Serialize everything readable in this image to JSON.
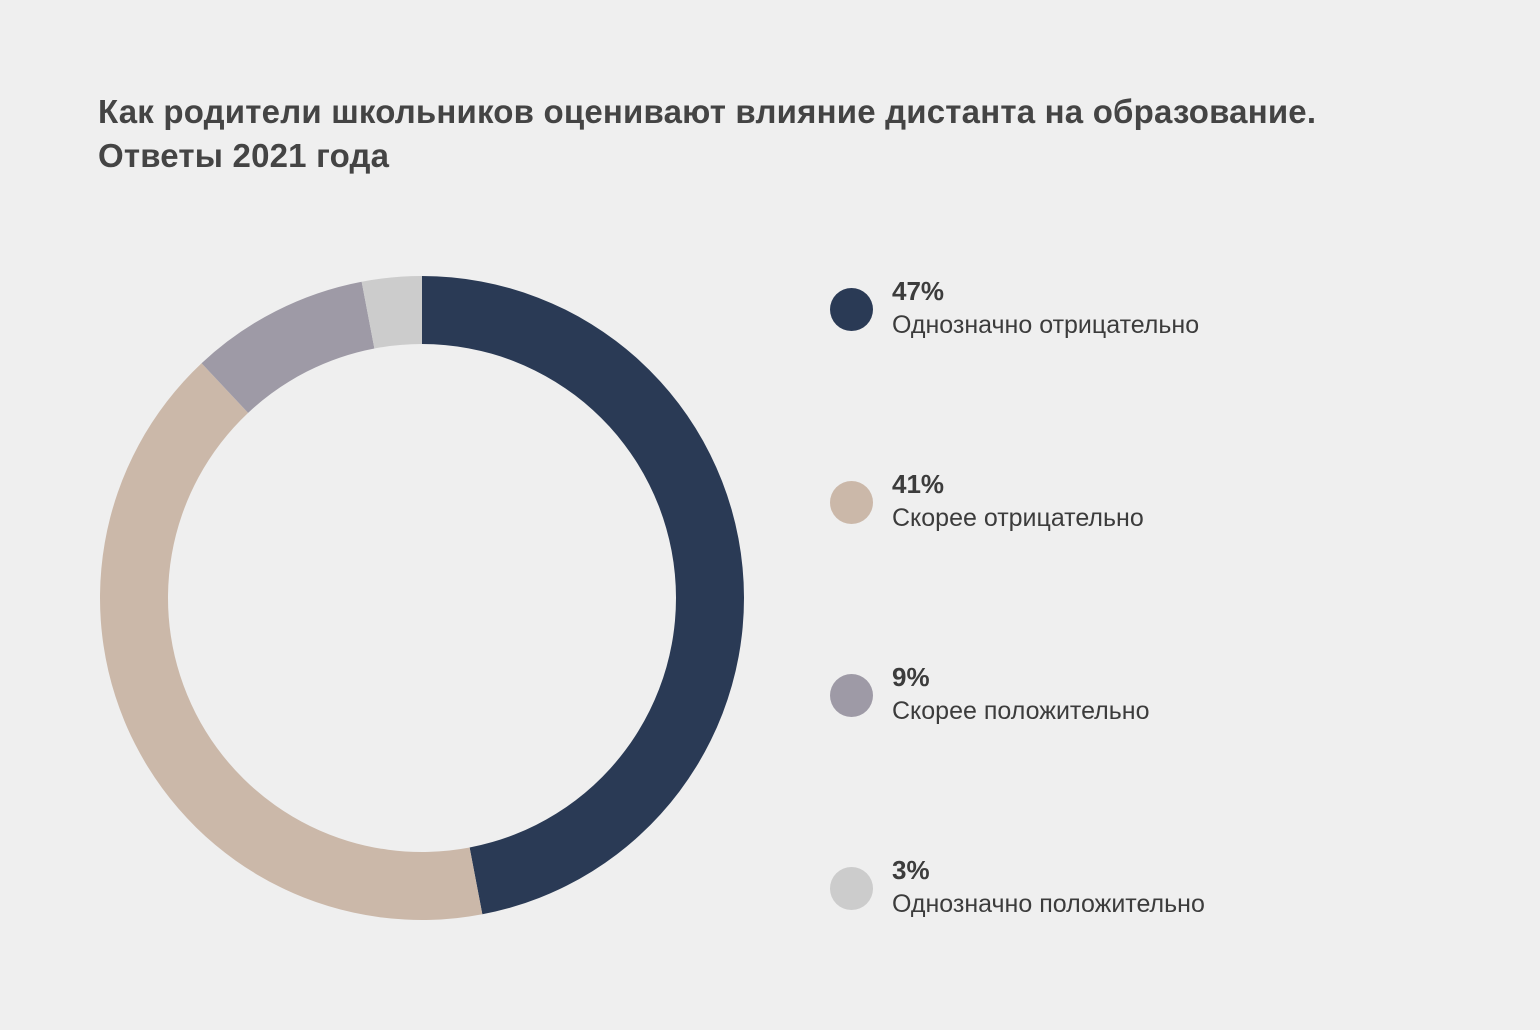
{
  "chart_data": {
    "type": "pie",
    "title": "Как родители школьников оценивают влияние дистанта на образование.",
    "subtitle": "Ответы 2021 года",
    "legend_position": "right",
    "donut": true,
    "slices": [
      {
        "label": "Однозначно отрицательно",
        "value": 47,
        "value_label": "47%",
        "color": "#2a3a55"
      },
      {
        "label": "Скорее отрицательно",
        "value": 41,
        "value_label": "41%",
        "color": "#cbb8a9"
      },
      {
        "label": "Скорее положительно",
        "value": 9,
        "value_label": "9%",
        "color": "#9e9aa6"
      },
      {
        "label": "Однозначно положительно",
        "value": 3,
        "value_label": "3%",
        "color": "#cccccc"
      }
    ]
  }
}
